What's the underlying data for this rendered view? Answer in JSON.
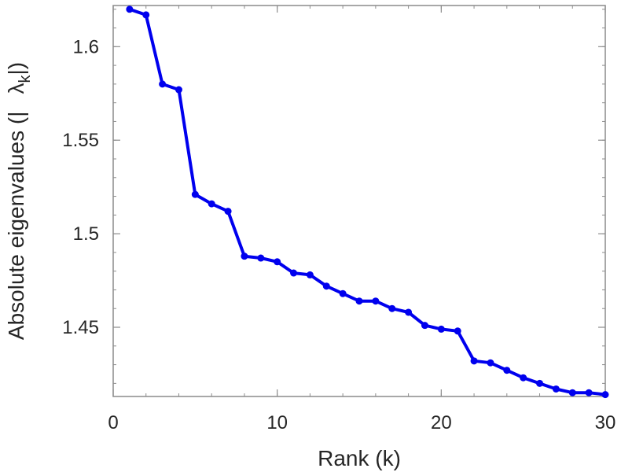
{
  "chart_data": {
    "type": "line",
    "title": "",
    "xlabel": "Rank (k)",
    "ylabel": {
      "prefix": "Absolute eigenvalues (|",
      "symbol": "λ",
      "subscript": "k",
      "suffix": "|)"
    },
    "xlim": [
      0,
      30
    ],
    "ylim": [
      1.413,
      1.622
    ],
    "x_ticks": [
      0,
      10,
      20,
      30
    ],
    "x_tick_labels": [
      "0",
      "10",
      "20",
      "30"
    ],
    "y_ticks": [
      1.45,
      1.5,
      1.55,
      1.6
    ],
    "y_tick_labels": [
      "1.45",
      "1.5",
      "1.55",
      "1.6"
    ],
    "grid": false,
    "series": [
      {
        "color": "#0000ee",
        "marker": "circle",
        "x": [
          1,
          2,
          3,
          4,
          5,
          6,
          7,
          8,
          9,
          10,
          11,
          12,
          13,
          14,
          15,
          16,
          17,
          18,
          19,
          20,
          21,
          22,
          23,
          24,
          25,
          26,
          27,
          28,
          29,
          30
        ],
        "y": [
          1.62,
          1.617,
          1.58,
          1.577,
          1.521,
          1.516,
          1.512,
          1.488,
          1.487,
          1.485,
          1.479,
          1.478,
          1.472,
          1.468,
          1.464,
          1.464,
          1.46,
          1.458,
          1.451,
          1.449,
          1.448,
          1.432,
          1.431,
          1.427,
          1.423,
          1.42,
          1.417,
          1.415,
          1.415,
          1.414
        ]
      }
    ]
  }
}
